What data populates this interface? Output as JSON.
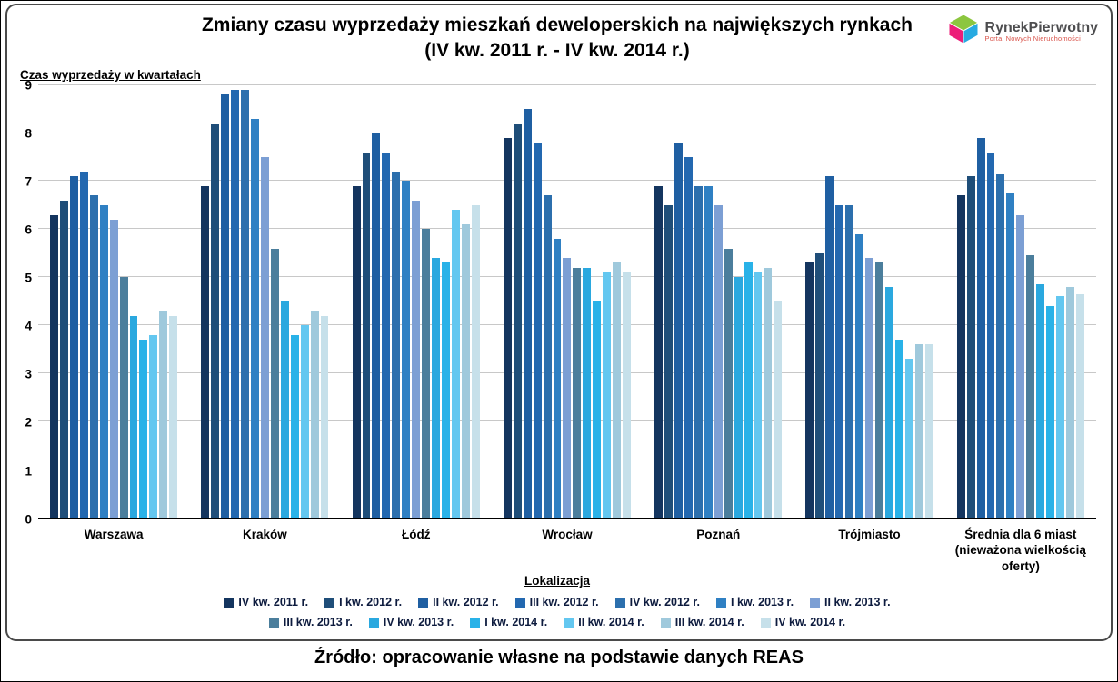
{
  "header": {
    "title_line1": "Zmiany czasu wyprzedaży mieszkań deweloperskich na największych rynkach",
    "title_line2": "(IV kw. 2011 r. - IV kw. 2014 r.)"
  },
  "logo": {
    "name": "RynekPierwotny",
    "subtitle": "Portal Nowych Nieruchomości"
  },
  "source_note": "Źródło: opracowanie własne na podstawie danych REAS",
  "chart_data": {
    "type": "bar",
    "title": "Zmiany czasu wyprzedaży mieszkań deweloperskich na największych rynkach (IV kw. 2011 r. - IV kw. 2014 r.)",
    "xlabel": "Lokalizacja",
    "ylabel": "Czas wyprzedaży w kwartałach",
    "ylim": [
      0,
      9
    ],
    "ytick_step": 1,
    "grid": true,
    "legend_position": "bottom",
    "categories": [
      "Warszawa",
      "Kraków",
      "Łódź",
      "Wrocław",
      "Poznań",
      "Trójmiasto",
      "Średnia dla 6 miast (nieważona wielkością oferty)"
    ],
    "series": [
      {
        "name": "IV kw. 2011 r.",
        "color": "#14355f",
        "values": [
          6.3,
          6.9,
          6.9,
          7.9,
          6.9,
          5.3,
          6.7
        ]
      },
      {
        "name": "I kw. 2012 r.",
        "color": "#1f4e79",
        "values": [
          6.6,
          8.2,
          7.6,
          8.2,
          6.5,
          5.5,
          7.1
        ]
      },
      {
        "name": "II kw. 2012 r.",
        "color": "#1f5fa2",
        "values": [
          7.1,
          8.8,
          8.0,
          8.5,
          7.8,
          7.1,
          7.9
        ]
      },
      {
        "name": "III kw. 2012 r.",
        "color": "#2368b0",
        "values": [
          7.2,
          8.9,
          7.6,
          7.8,
          7.5,
          6.5,
          7.6
        ]
      },
      {
        "name": "IV kw. 2012 r.",
        "color": "#2c6fad",
        "values": [
          6.7,
          8.9,
          7.2,
          6.7,
          6.9,
          6.5,
          7.15
        ]
      },
      {
        "name": "I kw. 2013 r.",
        "color": "#2f80c3",
        "values": [
          6.5,
          8.3,
          7.0,
          5.8,
          6.9,
          5.9,
          6.75
        ]
      },
      {
        "name": "II kw. 2013 r.",
        "color": "#7c9fd4",
        "values": [
          6.2,
          7.5,
          6.6,
          5.4,
          6.5,
          5.4,
          6.3
        ]
      },
      {
        "name": "III kw. 2013 r.",
        "color": "#4b7e9c",
        "values": [
          5.0,
          5.6,
          6.0,
          5.2,
          5.6,
          5.3,
          5.45
        ]
      },
      {
        "name": "IV kw. 2013 r.",
        "color": "#2aa8df",
        "values": [
          4.2,
          4.5,
          5.4,
          5.2,
          5.0,
          4.8,
          4.85
        ]
      },
      {
        "name": "I kw. 2014 r.",
        "color": "#29b2e8",
        "values": [
          3.7,
          3.8,
          5.3,
          4.5,
          5.3,
          3.7,
          4.4
        ]
      },
      {
        "name": "II kw. 2014 r.",
        "color": "#63c7f0",
        "values": [
          3.8,
          4.0,
          6.4,
          5.1,
          5.1,
          3.3,
          4.6
        ]
      },
      {
        "name": "III kw. 2014 r.",
        "color": "#9fc9dc",
        "values": [
          4.3,
          4.3,
          6.1,
          5.3,
          5.2,
          3.6,
          4.8
        ]
      },
      {
        "name": "IV kw. 2014 r.",
        "color": "#c6e0ea",
        "values": [
          4.2,
          4.2,
          6.5,
          5.1,
          4.5,
          3.6,
          4.65
        ]
      }
    ]
  }
}
